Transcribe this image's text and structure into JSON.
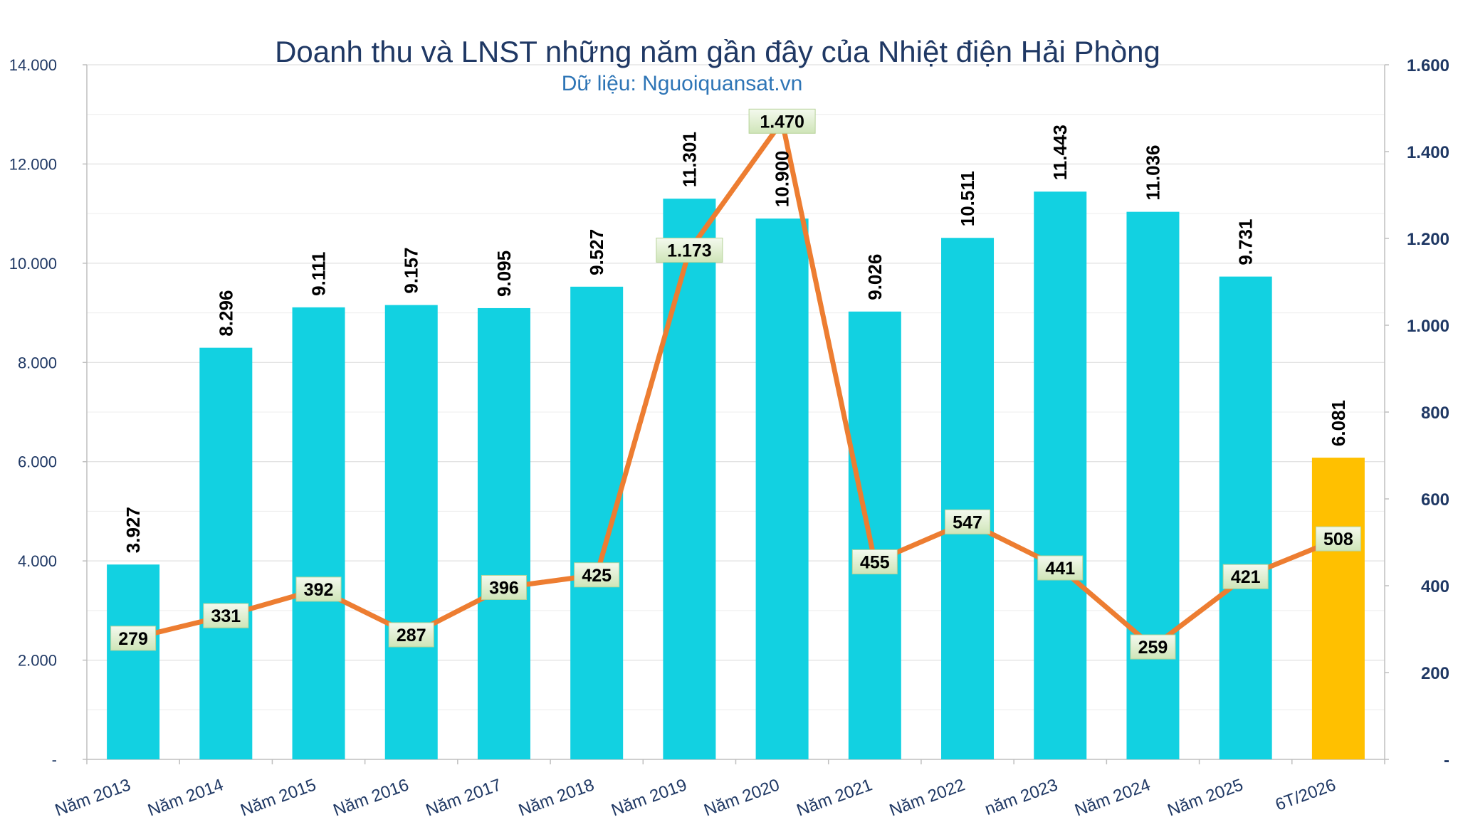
{
  "chart_data": {
    "type": "bar",
    "title": "Doanh thu và LNST những năm gần đây của Nhiệt điện Hải Phòng",
    "subtitle": "Dữ liệu: Nguoiquansat.vn",
    "categories": [
      "Năm 2013",
      "Năm 2014",
      "Năm 2015",
      "Năm 2016",
      "Năm 2017",
      "Năm 2018",
      "Năm 2019",
      "Năm 2020",
      "Năm 2021",
      "Năm 2022",
      "năm 2023",
      "Năm 2024",
      "Năm 2025",
      "6T/2026"
    ],
    "series": [
      {
        "type": "bar",
        "axis": "left",
        "values": [
          3927,
          8296,
          9111,
          9157,
          9095,
          9527,
          11301,
          10900,
          9026,
          10511,
          11443,
          11036,
          9731,
          6081
        ],
        "labels": [
          "3.927",
          "8.296",
          "9.111",
          "9.157",
          "9.095",
          "9.527",
          "11.301",
          "10.900",
          "9.026",
          "10.511",
          "11.443",
          "11.036",
          "9.731",
          "6.081"
        ],
        "color": "#12d1e1",
        "highlight_color": "#ffc000",
        "highlight_index": 13
      },
      {
        "type": "line",
        "axis": "right",
        "values": [
          279,
          331,
          392,
          287,
          396,
          425,
          1173,
          1470,
          455,
          547,
          441,
          259,
          421,
          508
        ],
        "labels": [
          "279",
          "331",
          "392",
          "287",
          "396",
          "425",
          "1.173",
          "1.470",
          "455",
          "547",
          "441",
          "259",
          "421",
          "508"
        ],
        "color": "#ed7d31"
      }
    ],
    "y_axis_left": {
      "ylim": [
        0,
        14000
      ],
      "ticks": [
        0,
        2000,
        4000,
        6000,
        8000,
        10000,
        12000,
        14000
      ],
      "tick_labels": [
        "-",
        "2.000",
        "4.000",
        "6.000",
        "8.000",
        "10.000",
        "12.000",
        "14.000"
      ]
    },
    "y_axis_right": {
      "ylim": [
        0,
        1600
      ],
      "ticks": [
        0,
        200,
        400,
        600,
        800,
        1000,
        1200,
        1400,
        1600
      ],
      "tick_labels": [
        "-",
        "200",
        "400",
        "600",
        "800",
        "1.000",
        "1.200",
        "1.400",
        "1.600"
      ]
    },
    "grid": true,
    "legend": "none"
  }
}
